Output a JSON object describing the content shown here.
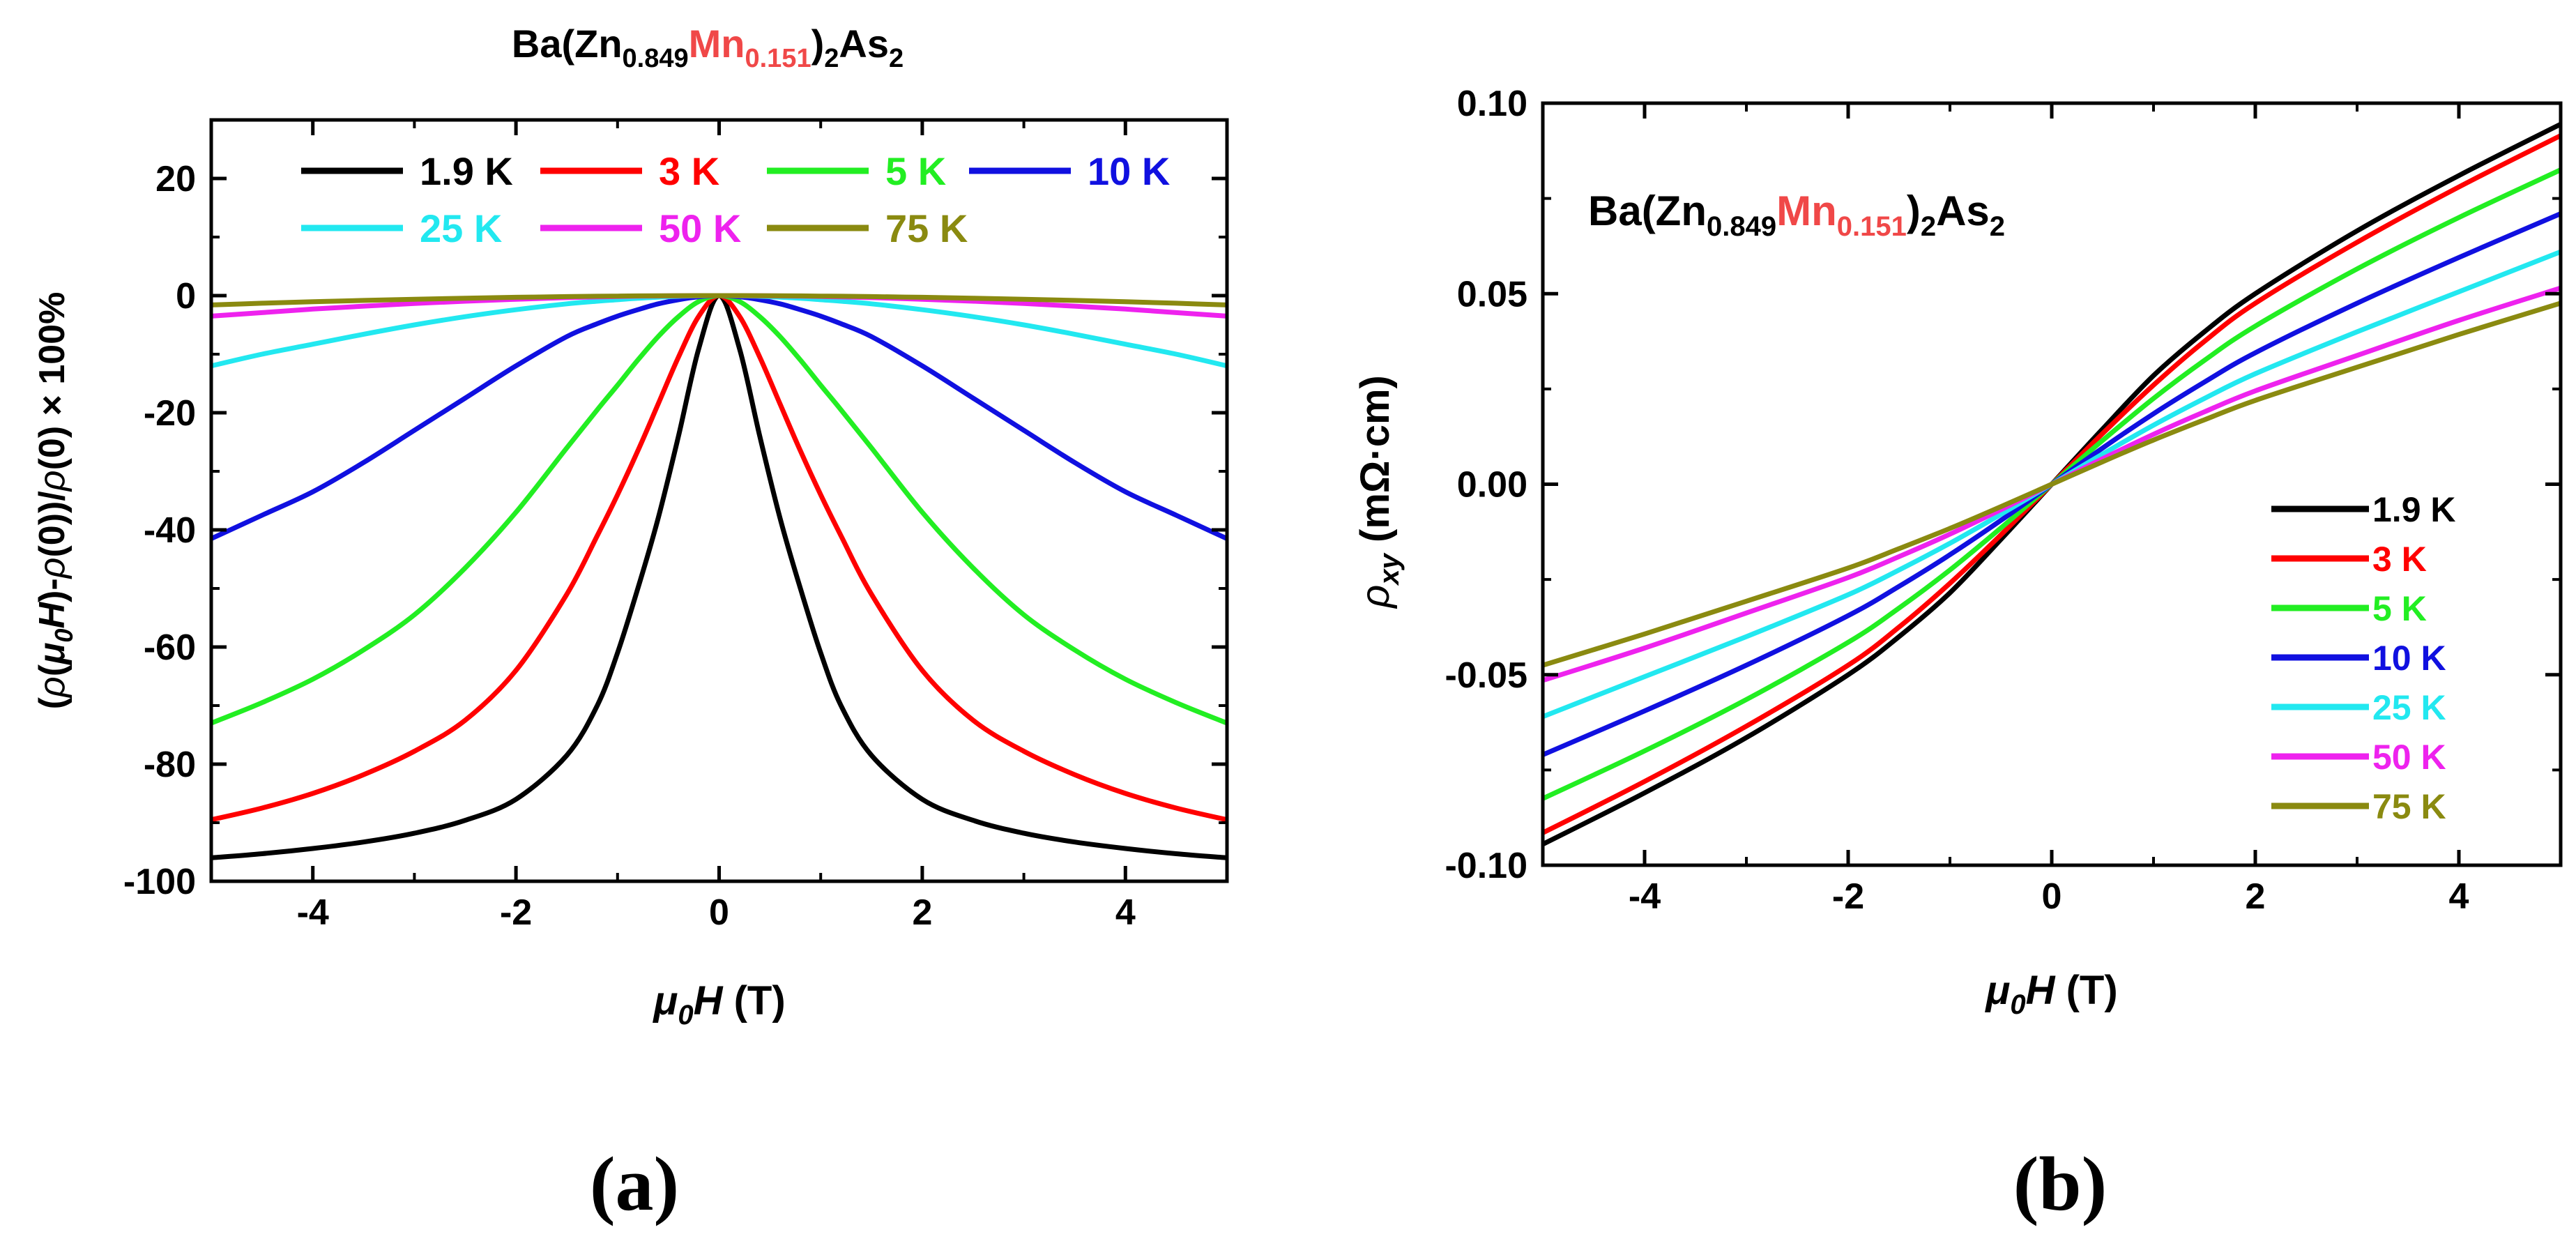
{
  "colors": {
    "1.9 K": "#000000",
    "3 K": "#ff0000",
    "5 K": "#22ee22",
    "10 K": "#1010e0",
    "25 K": "#22e8f0",
    "50 K": "#ee22ee",
    "75 K": "#8a8a10",
    "mn_red": "#f04848"
  },
  "chart_data": [
    {
      "id": "a",
      "type": "line",
      "panel_label": "(a)",
      "title": {
        "pre": "Ba(Zn",
        "sub1": "0.849",
        "red": "Mn",
        "sub2": "0.151",
        "mid": ")",
        "sub3": "2",
        "post": "As",
        "sub4": "2"
      },
      "ylabel": "(ρ(μ0H)-ρ(0))/ρ(0) × 100%",
      "ylabel_parts": {
        "p1": "(",
        "rho1": "ρ",
        "p2": "(",
        "mu": "μ",
        "sub0": "0",
        "H": "H",
        "p3": ")-",
        "rho2": "ρ",
        "p4": "(0))/",
        "rho3": "ρ",
        "p5": "(0) × 100%"
      },
      "xlabel_parts": {
        "mu": "μ",
        "sub0": "0",
        "H": "H",
        "unit": " (T)"
      },
      "xlim": [
        -5,
        5
      ],
      "ylim": [
        -100,
        30
      ],
      "xticks": [
        -4,
        -2,
        0,
        2,
        4
      ],
      "xtick_labels": [
        "-4",
        "-2",
        "0",
        "2",
        "4"
      ],
      "yticks": [
        20,
        0,
        -20,
        -40,
        -60,
        -80,
        -100
      ],
      "ytick_labels": [
        "20",
        "0",
        "-20",
        "-40",
        "-60",
        "-80",
        "-100"
      ],
      "legend": "top, two rows",
      "x": [
        -5,
        -4.5,
        -4,
        -3.5,
        -3,
        -2.5,
        -2,
        -1.5,
        -1.2,
        -1,
        -0.8,
        -0.6,
        -0.4,
        -0.2,
        0,
        0.2,
        0.4,
        0.6,
        0.8,
        1,
        1.2,
        1.5,
        2,
        2.5,
        3,
        3.5,
        4,
        4.5,
        5
      ],
      "series": [
        {
          "name": "1.9 K",
          "values": [
            -96,
            -95.3,
            -94.4,
            -93.3,
            -91.8,
            -89.6,
            -86,
            -78.5,
            -70,
            -61,
            -50,
            -38,
            -24,
            -9,
            0,
            -9,
            -24,
            -38,
            -50,
            -61,
            -70,
            -78.5,
            -86,
            -89.6,
            -91.8,
            -93.3,
            -94.4,
            -95.3,
            -96
          ]
        },
        {
          "name": "3 K",
          "values": [
            -89.5,
            -87.5,
            -85,
            -81.8,
            -77.8,
            -72.5,
            -64,
            -51,
            -41,
            -34,
            -26.5,
            -18.5,
            -10.5,
            -3.5,
            0,
            -3.5,
            -10.5,
            -18.5,
            -26.5,
            -34,
            -41,
            -51,
            -64,
            -72.5,
            -77.8,
            -81.8,
            -85,
            -87.5,
            -89.5
          ]
        },
        {
          "name": "5 K",
          "values": [
            -73,
            -69.5,
            -65.5,
            -60.5,
            -54.5,
            -46.5,
            -37,
            -26,
            -19.5,
            -15.3,
            -11,
            -7,
            -3.6,
            -1,
            0,
            -1,
            -3.6,
            -7,
            -11,
            -15.3,
            -19.5,
            -26,
            -37,
            -46.5,
            -54.5,
            -60.5,
            -65.5,
            -69.5,
            -73
          ]
        },
        {
          "name": "10 K",
          "values": [
            -41.5,
            -37.5,
            -33.5,
            -28.5,
            -23,
            -17.5,
            -12,
            -7,
            -4.8,
            -3.5,
            -2.4,
            -1.4,
            -0.7,
            -0.2,
            0,
            -0.2,
            -0.7,
            -1.4,
            -2.4,
            -3.5,
            -4.8,
            -7,
            -12,
            -17.5,
            -23,
            -28.5,
            -33.5,
            -37.5,
            -41.5
          ]
        },
        {
          "name": "25 K",
          "values": [
            -12,
            -10,
            -8.3,
            -6.6,
            -5,
            -3.6,
            -2.4,
            -1.4,
            -0.95,
            -0.7,
            -0.45,
            -0.26,
            -0.12,
            -0.03,
            0,
            -0.03,
            -0.12,
            -0.26,
            -0.45,
            -0.7,
            -0.95,
            -1.4,
            -2.4,
            -3.6,
            -5,
            -6.6,
            -8.3,
            -10,
            -12
          ]
        },
        {
          "name": "50 K",
          "values": [
            -3.5,
            -2.9,
            -2.3,
            -1.8,
            -1.35,
            -0.95,
            -0.62,
            -0.35,
            -0.23,
            -0.16,
            -0.1,
            -0.06,
            -0.03,
            -0.01,
            0,
            -0.01,
            -0.03,
            -0.06,
            -0.1,
            -0.16,
            -0.23,
            -0.35,
            -0.62,
            -0.95,
            -1.35,
            -1.8,
            -2.3,
            -2.9,
            -3.5
          ]
        },
        {
          "name": "75 K",
          "values": [
            -1.6,
            -1.3,
            -1.05,
            -0.82,
            -0.62,
            -0.44,
            -0.29,
            -0.17,
            -0.11,
            -0.08,
            -0.05,
            -0.03,
            -0.01,
            0,
            0,
            0,
            -0.01,
            -0.03,
            -0.05,
            -0.08,
            -0.11,
            -0.17,
            -0.29,
            -0.44,
            -0.62,
            -0.82,
            -1.05,
            -1.3,
            -1.6
          ]
        }
      ]
    },
    {
      "id": "b",
      "type": "line",
      "panel_label": "(b)",
      "title": {
        "pre": "Ba(Zn",
        "sub1": "0.849",
        "red": "Mn",
        "sub2": "0.151",
        "mid": ")",
        "sub3": "2",
        "post": "As",
        "sub4": "2"
      },
      "ylabel": "ρxy (mΩ·cm)",
      "ylabel_parts": {
        "rho": "ρ",
        "sub": "xy",
        "unit": " (mΩ·cm)"
      },
      "xlabel_parts": {
        "mu": "μ",
        "sub0": "0",
        "H": "H",
        "unit": " (T)"
      },
      "xlim": [
        -5,
        5
      ],
      "ylim": [
        -0.1,
        0.1
      ],
      "xticks": [
        -4,
        -2,
        0,
        2,
        4
      ],
      "xtick_labels": [
        "-4",
        "-2",
        "0",
        "2",
        "4"
      ],
      "yticks": [
        0.1,
        0.05,
        0,
        -0.05,
        -0.1
      ],
      "ytick_labels": [
        "0.10",
        "0.05",
        "0.00",
        "-0.05",
        "-0.10"
      ],
      "legend": "bottom-right",
      "x": [
        -5,
        -4,
        -3,
        -2,
        -1.5,
        -1,
        -0.5,
        0,
        0.5,
        1,
        1.5,
        2,
        3,
        4,
        5
      ],
      "series": [
        {
          "name": "1.9 K",
          "values": [
            -0.0945,
            -0.081,
            -0.0665,
            -0.05,
            -0.04,
            -0.0285,
            -0.0145,
            0,
            0.0145,
            0.0285,
            0.04,
            0.05,
            0.0665,
            0.081,
            0.0945
          ]
        },
        {
          "name": "3 K",
          "values": [
            -0.0915,
            -0.078,
            -0.0635,
            -0.0475,
            -0.0375,
            -0.026,
            -0.0133,
            0,
            0.0133,
            0.026,
            0.0375,
            0.0475,
            0.0635,
            0.078,
            0.0915
          ]
        },
        {
          "name": "5 K",
          "values": [
            -0.0825,
            -0.07,
            -0.0565,
            -0.0415,
            -0.0325,
            -0.0225,
            -0.0115,
            0,
            0.0115,
            0.0225,
            0.0325,
            0.0415,
            0.0565,
            0.07,
            0.0825
          ]
        },
        {
          "name": "10 K",
          "values": [
            -0.071,
            -0.0595,
            -0.0475,
            -0.0345,
            -0.0268,
            -0.0185,
            -0.0095,
            0,
            0.0095,
            0.0185,
            0.0268,
            0.0345,
            0.0475,
            0.0595,
            0.071
          ]
        },
        {
          "name": "25 K",
          "values": [
            -0.061,
            -0.0505,
            -0.04,
            -0.029,
            -0.0225,
            -0.0155,
            -0.0079,
            0,
            0.0079,
            0.0155,
            0.0225,
            0.029,
            0.04,
            0.0505,
            0.061
          ]
        },
        {
          "name": "50 K",
          "values": [
            -0.0515,
            -0.043,
            -0.0338,
            -0.0245,
            -0.019,
            -0.0131,
            -0.0067,
            0,
            0.0067,
            0.0131,
            0.019,
            0.0245,
            0.0338,
            0.043,
            0.0515
          ]
        },
        {
          "name": "75 K",
          "values": [
            -0.0475,
            -0.0393,
            -0.0307,
            -0.022,
            -0.0169,
            -0.0116,
            -0.0059,
            0,
            0.0059,
            0.0116,
            0.0169,
            0.022,
            0.0307,
            0.0393,
            0.0475
          ]
        }
      ]
    }
  ]
}
